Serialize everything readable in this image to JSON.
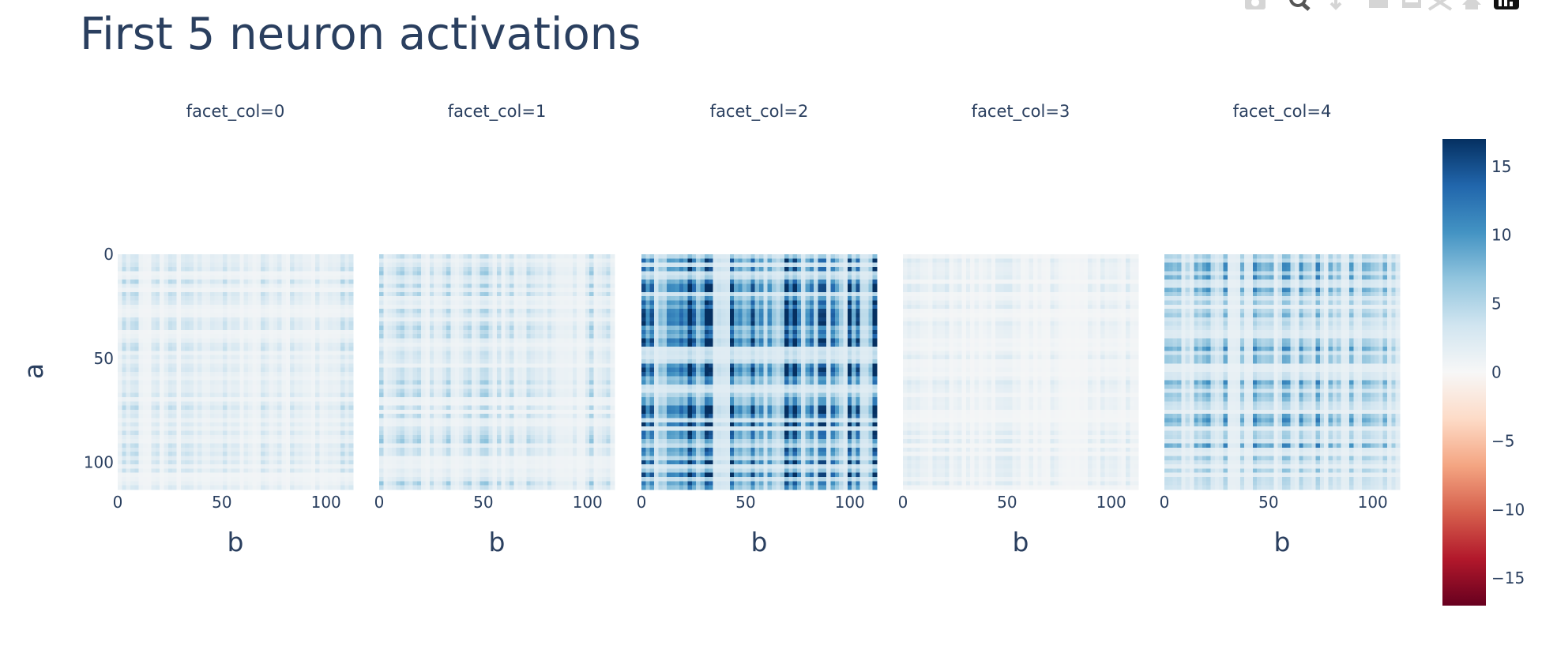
{
  "title": "First 5 neuron activations",
  "modebar": {
    "icons": [
      "camera-icon",
      "zoom-icon",
      "pan-icon",
      "zoom-in-icon",
      "zoom-out-icon",
      "autoscale-icon",
      "reset-axes-icon",
      "plotly-logo-icon"
    ]
  },
  "chart_data": {
    "type": "heatmap",
    "facets": [
      {
        "label": "facet_col=0",
        "intensity": 0.18
      },
      {
        "label": "facet_col=1",
        "intensity": 0.24
      },
      {
        "label": "facet_col=2",
        "intensity": 0.78
      },
      {
        "label": "facet_col=3",
        "intensity": 0.1
      },
      {
        "label": "facet_col=4",
        "intensity": 0.45
      }
    ],
    "xlabel": "b",
    "ylabel": "a",
    "x_range": [
      0,
      113
    ],
    "y_range": [
      0,
      113
    ],
    "x_ticks": [
      0,
      50,
      100
    ],
    "y_ticks": [
      0,
      50,
      100
    ],
    "colorscale": "RdBu",
    "colorbar": {
      "range": [
        -17,
        17
      ],
      "ticks": [
        15,
        10,
        5,
        0,
        -5,
        -10,
        -15
      ],
      "tick_labels": [
        "15",
        "10",
        "5",
        "0",
        "−5",
        "−10",
        "−15"
      ]
    },
    "colors": [
      "#053061",
      "#2166ac",
      "#4393c3",
      "#92c5de",
      "#d1e5f0",
      "#f7f7f7",
      "#fddbc7",
      "#f4a582",
      "#d6604d",
      "#b2182b",
      "#67001f"
    ]
  }
}
